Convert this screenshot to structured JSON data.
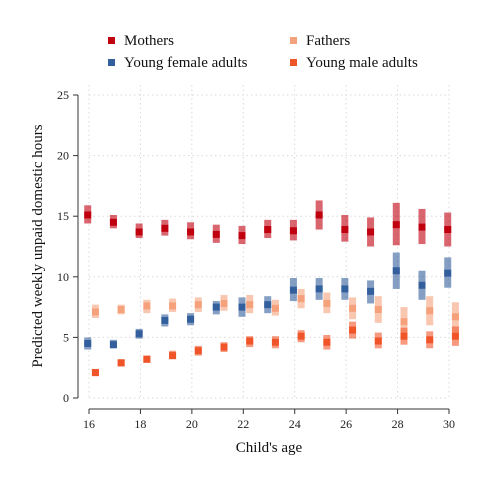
{
  "chart_data": {
    "type": "scatter",
    "title": "",
    "xlabel": "Child's age",
    "ylabel": "Predicted weekly unpaid domestic hours",
    "xlim": [
      16,
      30
    ],
    "ylim": [
      0,
      25
    ],
    "xticks": [
      16,
      18,
      20,
      22,
      24,
      26,
      28,
      30
    ],
    "yticks": [
      0,
      5,
      10,
      15,
      20,
      25
    ],
    "grid": true,
    "legend_position": "top",
    "series": [
      {
        "name": "Mothers",
        "color": "#c0000f",
        "offset": -0.05,
        "points": [
          {
            "x": 16,
            "y": 15.1,
            "lo": 14.4,
            "hi": 15.9
          },
          {
            "x": 17,
            "y": 14.5,
            "lo": 14.0,
            "hi": 15.1
          },
          {
            "x": 18,
            "y": 13.7,
            "lo": 13.2,
            "hi": 14.4
          },
          {
            "x": 19,
            "y": 14.0,
            "lo": 13.4,
            "hi": 14.7
          },
          {
            "x": 20,
            "y": 13.7,
            "lo": 13.1,
            "hi": 14.5
          },
          {
            "x": 21,
            "y": 13.5,
            "lo": 12.8,
            "hi": 14.3
          },
          {
            "x": 22,
            "y": 13.4,
            "lo": 12.7,
            "hi": 14.2
          },
          {
            "x": 23,
            "y": 13.9,
            "lo": 13.2,
            "hi": 14.7
          },
          {
            "x": 24,
            "y": 13.8,
            "lo": 13.0,
            "hi": 14.7
          },
          {
            "x": 25,
            "y": 15.1,
            "lo": 13.9,
            "hi": 16.3
          },
          {
            "x": 26,
            "y": 13.9,
            "lo": 12.9,
            "hi": 15.1
          },
          {
            "x": 27,
            "y": 13.7,
            "lo": 12.5,
            "hi": 14.9
          },
          {
            "x": 28,
            "y": 14.3,
            "lo": 12.6,
            "hi": 16.1
          },
          {
            "x": 29,
            "y": 14.1,
            "lo": 12.7,
            "hi": 15.6
          },
          {
            "x": 30,
            "y": 13.9,
            "lo": 12.5,
            "hi": 15.3
          }
        ]
      },
      {
        "name": "Fathers",
        "color": "#f5a27c",
        "offset": 0.25,
        "points": [
          {
            "x": 16,
            "y": 7.1,
            "lo": 6.6,
            "hi": 7.7
          },
          {
            "x": 17,
            "y": 7.3,
            "lo": 6.9,
            "hi": 7.7
          },
          {
            "x": 18,
            "y": 7.6,
            "lo": 7.0,
            "hi": 8.1
          },
          {
            "x": 19,
            "y": 7.6,
            "lo": 7.1,
            "hi": 8.2
          },
          {
            "x": 20,
            "y": 7.7,
            "lo": 7.1,
            "hi": 8.3
          },
          {
            "x": 21,
            "y": 7.8,
            "lo": 7.2,
            "hi": 8.5
          },
          {
            "x": 22,
            "y": 7.7,
            "lo": 7.0,
            "hi": 8.5
          },
          {
            "x": 23,
            "y": 7.4,
            "lo": 6.8,
            "hi": 8.1
          },
          {
            "x": 24,
            "y": 8.2,
            "lo": 7.4,
            "hi": 9.0
          },
          {
            "x": 25,
            "y": 7.8,
            "lo": 7.0,
            "hi": 8.7
          },
          {
            "x": 26,
            "y": 7.4,
            "lo": 6.5,
            "hi": 8.3
          },
          {
            "x": 27,
            "y": 7.3,
            "lo": 6.2,
            "hi": 8.4
          },
          {
            "x": 28,
            "y": 6.3,
            "lo": 5.2,
            "hi": 7.5
          },
          {
            "x": 29,
            "y": 7.2,
            "lo": 6.0,
            "hi": 8.4
          },
          {
            "x": 30,
            "y": 6.7,
            "lo": 5.4,
            "hi": 7.9
          }
        ]
      },
      {
        "name": "Young female adults",
        "color": "#335f9d",
        "offset": -0.05,
        "points": [
          {
            "x": 16,
            "y": 4.5,
            "lo": 4.0,
            "hi": 5.0
          },
          {
            "x": 17,
            "y": 4.4,
            "lo": 4.1,
            "hi": 4.8
          },
          {
            "x": 18,
            "y": 5.3,
            "lo": 4.9,
            "hi": 5.7
          },
          {
            "x": 19,
            "y": 6.4,
            "lo": 5.9,
            "hi": 6.9
          },
          {
            "x": 20,
            "y": 6.5,
            "lo": 6.0,
            "hi": 7.0
          },
          {
            "x": 21,
            "y": 7.5,
            "lo": 6.9,
            "hi": 8.0
          },
          {
            "x": 22,
            "y": 7.5,
            "lo": 6.7,
            "hi": 8.3
          },
          {
            "x": 23,
            "y": 7.7,
            "lo": 7.0,
            "hi": 8.4
          },
          {
            "x": 24,
            "y": 8.9,
            "lo": 8.0,
            "hi": 9.9
          },
          {
            "x": 25,
            "y": 9.0,
            "lo": 8.1,
            "hi": 9.9
          },
          {
            "x": 26,
            "y": 9.0,
            "lo": 8.1,
            "hi": 9.9
          },
          {
            "x": 27,
            "y": 8.8,
            "lo": 7.8,
            "hi": 9.7
          },
          {
            "x": 28,
            "y": 10.5,
            "lo": 9.0,
            "hi": 12.0
          },
          {
            "x": 29,
            "y": 9.3,
            "lo": 8.1,
            "hi": 10.5
          },
          {
            "x": 30,
            "y": 10.3,
            "lo": 9.1,
            "hi": 11.6
          }
        ]
      },
      {
        "name": "Young male adults",
        "color": "#f0552a",
        "offset": 0.25,
        "points": [
          {
            "x": 16,
            "y": 2.1,
            "lo": 1.8,
            "hi": 2.4
          },
          {
            "x": 17,
            "y": 2.9,
            "lo": 2.6,
            "hi": 3.2
          },
          {
            "x": 18,
            "y": 3.2,
            "lo": 2.9,
            "hi": 3.5
          },
          {
            "x": 19,
            "y": 3.5,
            "lo": 3.2,
            "hi": 3.9
          },
          {
            "x": 20,
            "y": 3.9,
            "lo": 3.5,
            "hi": 4.3
          },
          {
            "x": 21,
            "y": 4.2,
            "lo": 3.8,
            "hi": 4.6
          },
          {
            "x": 22,
            "y": 4.7,
            "lo": 4.2,
            "hi": 5.1
          },
          {
            "x": 23,
            "y": 4.6,
            "lo": 4.1,
            "hi": 5.1
          },
          {
            "x": 24,
            "y": 5.1,
            "lo": 4.6,
            "hi": 5.6
          },
          {
            "x": 25,
            "y": 4.6,
            "lo": 4.0,
            "hi": 5.2
          },
          {
            "x": 26,
            "y": 5.6,
            "lo": 4.9,
            "hi": 6.3
          },
          {
            "x": 27,
            "y": 4.7,
            "lo": 4.1,
            "hi": 5.4
          },
          {
            "x": 28,
            "y": 5.1,
            "lo": 4.4,
            "hi": 5.8
          },
          {
            "x": 29,
            "y": 4.8,
            "lo": 4.1,
            "hi": 5.5
          },
          {
            "x": 30,
            "y": 5.1,
            "lo": 4.3,
            "hi": 5.9
          }
        ]
      }
    ]
  }
}
